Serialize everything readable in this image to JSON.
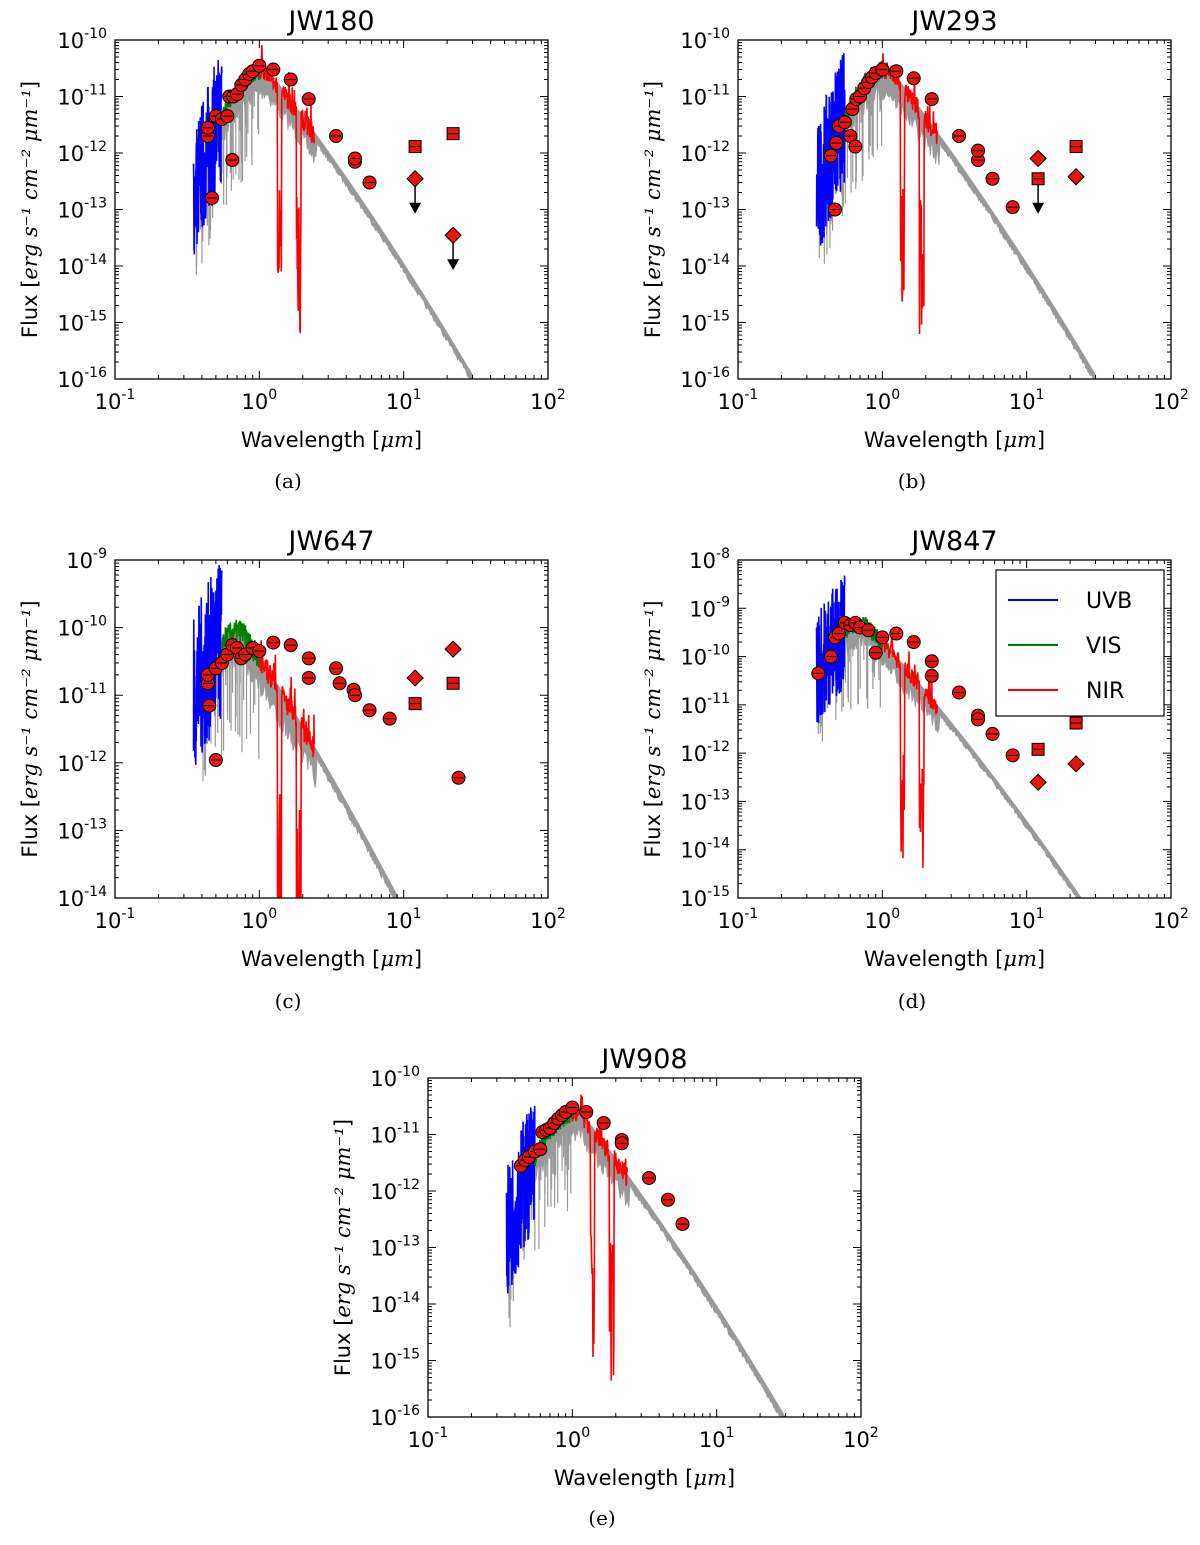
{
  "figure": {
    "type": "figure",
    "caption_note": ""
  },
  "axis_labels": {
    "x_prefix": "Wavelength [",
    "x_unit": "μm",
    "x_suffix": "]",
    "y_prefix": "Flux [",
    "y_unit": "erg s⁻¹ cm⁻² μm⁻¹",
    "y_suffix": "]"
  },
  "legend": {
    "entries": [
      {
        "label": "UVB",
        "color": "#0000ff"
      },
      {
        "label": "VIS",
        "color": "#008000"
      },
      {
        "label": "NIR",
        "color": "#ff0000"
      }
    ]
  },
  "colors": {
    "model": "#999999",
    "uvb": "#0000ff",
    "vis": "#008000",
    "nir": "#ff0000",
    "marker": "#e8140c"
  },
  "chart_data": [
    {
      "type": "scatter",
      "panel": "a",
      "title": "JW180",
      "caption": "(a)",
      "xscale": "log",
      "yscale": "log",
      "xlim": [
        0.1,
        100
      ],
      "ylim": [
        1e-16,
        1e-10
      ],
      "xticks": [
        0.1,
        1,
        10,
        100
      ],
      "xtick_labels": [
        "10-1",
        "100",
        "101",
        "102"
      ],
      "yticks_exp": [
        -16,
        -15,
        -14,
        -13,
        -12,
        -11,
        -10
      ],
      "model_peak": {
        "x": 1.1,
        "y": 3e-11
      },
      "model_xrange": [
        0.35,
        30
      ],
      "spectra": {
        "uvb": [
          0.35,
          0.55
        ],
        "vis": [
          0.55,
          1.0
        ],
        "nir": [
          1.0,
          2.4
        ]
      },
      "photometry_circles": [
        [
          0.44,
          2e-12
        ],
        [
          0.44,
          2.8e-12
        ],
        [
          0.47,
          1.6e-13
        ],
        [
          0.5,
          4.5e-12
        ],
        [
          0.55,
          4e-12
        ],
        [
          0.6,
          4.5e-12
        ],
        [
          0.62,
          1e-11
        ],
        [
          0.65,
          7.5e-13
        ],
        [
          0.66,
          1e-11
        ],
        [
          0.7,
          1.1e-11
        ],
        [
          0.75,
          1.6e-11
        ],
        [
          0.8,
          2e-11
        ],
        [
          0.85,
          2.5e-11
        ],
        [
          0.9,
          2.8e-11
        ],
        [
          1.0,
          3.5e-11
        ],
        [
          1.25,
          3e-11
        ],
        [
          1.65,
          2e-11
        ],
        [
          2.2,
          9e-12
        ],
        [
          3.4,
          2e-12
        ],
        [
          4.6,
          7e-13
        ],
        [
          4.6,
          8e-13
        ],
        [
          5.8,
          3e-13
        ]
      ],
      "photometry_squares": [
        [
          12,
          1.3e-12
        ],
        [
          22,
          2.2e-12
        ]
      ],
      "photometry_diamonds": [
        [
          12,
          3.5e-13
        ],
        [
          22,
          3.5e-14
        ]
      ],
      "upper_limits": [
        [
          12,
          3.5e-13
        ],
        [
          22,
          3.5e-14
        ]
      ]
    },
    {
      "type": "scatter",
      "panel": "b",
      "title": "JW293",
      "caption": "(b)",
      "xscale": "log",
      "yscale": "log",
      "xlim": [
        0.1,
        100
      ],
      "ylim": [
        1e-16,
        1e-10
      ],
      "xticks": [
        0.1,
        1,
        10,
        100
      ],
      "xtick_labels": [
        "10-1",
        "100",
        "101",
        "102"
      ],
      "yticks_exp": [
        -16,
        -15,
        -14,
        -13,
        -12,
        -11,
        -10
      ],
      "model_peak": {
        "x": 1.1,
        "y": 3e-11
      },
      "model_xrange": [
        0.35,
        30
      ],
      "spectra": {
        "uvb": [
          0.35,
          0.55
        ],
        "vis": [
          0.55,
          1.0
        ],
        "nir": [
          1.0,
          2.4
        ]
      },
      "photometry_circles": [
        [
          0.44,
          9e-13
        ],
        [
          0.47,
          1e-13
        ],
        [
          0.48,
          1.5e-12
        ],
        [
          0.5,
          3e-12
        ],
        [
          0.55,
          3.5e-12
        ],
        [
          0.6,
          2e-12
        ],
        [
          0.62,
          6e-12
        ],
        [
          0.65,
          1.3e-12
        ],
        [
          0.66,
          9e-12
        ],
        [
          0.7,
          1e-11
        ],
        [
          0.75,
          1.4e-11
        ],
        [
          0.8,
          1.8e-11
        ],
        [
          0.85,
          2.2e-11
        ],
        [
          0.9,
          2.6e-11
        ],
        [
          1.0,
          3e-11
        ],
        [
          1.25,
          2.8e-11
        ],
        [
          1.65,
          2.1e-11
        ],
        [
          2.2,
          9e-12
        ],
        [
          3.4,
          2e-12
        ],
        [
          4.6,
          7.5e-13
        ],
        [
          4.6,
          1.1e-12
        ],
        [
          5.8,
          3.5e-13
        ],
        [
          8,
          1.1e-13
        ]
      ],
      "photometry_squares": [
        [
          12,
          3.5e-13
        ],
        [
          22,
          1.3e-12
        ]
      ],
      "photometry_diamonds": [
        [
          12,
          8e-13
        ],
        [
          22,
          3.8e-13
        ]
      ],
      "upper_limits": [
        [
          12,
          3.5e-13
        ]
      ]
    },
    {
      "type": "scatter",
      "panel": "c",
      "title": "JW647",
      "caption": "(c)",
      "xscale": "log",
      "yscale": "log",
      "xlim": [
        0.1,
        100
      ],
      "ylim": [
        1e-14,
        1e-09
      ],
      "xticks": [
        0.1,
        1,
        10,
        100
      ],
      "xtick_labels": [
        "10-1",
        "100",
        "101",
        "102"
      ],
      "yticks_exp": [
        -14,
        -13,
        -12,
        -11,
        -10,
        -9
      ],
      "model_peak": {
        "x": 0.75,
        "y": 9e-11
      },
      "model_xrange": [
        0.35,
        16
      ],
      "spectra": {
        "uvb": [
          0.35,
          0.55
        ],
        "vis": [
          0.55,
          1.0
        ],
        "nir": [
          1.0,
          2.4
        ]
      },
      "photometry_circles": [
        [
          0.44,
          1.5e-11
        ],
        [
          0.44,
          2e-11
        ],
        [
          0.45,
          7e-12
        ],
        [
          0.5,
          1.1e-12
        ],
        [
          0.5,
          2.5e-11
        ],
        [
          0.55,
          3e-11
        ],
        [
          0.6,
          4e-11
        ],
        [
          0.65,
          5.5e-11
        ],
        [
          0.7,
          5e-11
        ],
        [
          0.75,
          3.5e-11
        ],
        [
          0.8,
          4e-11
        ],
        [
          0.9,
          5e-11
        ],
        [
          1.0,
          4.5e-11
        ],
        [
          1.25,
          6e-11
        ],
        [
          1.65,
          5.5e-11
        ],
        [
          2.2,
          3.5e-11
        ],
        [
          2.2,
          1.8e-11
        ],
        [
          3.4,
          2.5e-11
        ],
        [
          3.6,
          1.5e-11
        ],
        [
          4.5,
          1.2e-11
        ],
        [
          4.6,
          1e-11
        ],
        [
          5.8,
          6e-12
        ],
        [
          8,
          4.5e-12
        ],
        [
          24,
          6e-13
        ]
      ],
      "photometry_squares": [
        [
          12,
          7.5e-12
        ],
        [
          22,
          1.5e-11
        ]
      ],
      "photometry_diamonds": [
        [
          12,
          1.8e-11
        ],
        [
          22,
          4.8e-11
        ]
      ],
      "upper_limits": []
    },
    {
      "type": "scatter",
      "panel": "d",
      "title": "JW847",
      "caption": "(d)",
      "xscale": "log",
      "yscale": "log",
      "xlim": [
        0.1,
        100
      ],
      "ylim": [
        1e-15,
        1e-08
      ],
      "xticks": [
        0.1,
        1,
        10,
        100
      ],
      "xtick_labels": [
        "10-1",
        "100",
        "101",
        "102"
      ],
      "yticks_exp": [
        -15,
        -14,
        -13,
        -12,
        -11,
        -10,
        -9,
        -8
      ],
      "model_peak": {
        "x": 0.75,
        "y": 5e-10
      },
      "model_xrange": [
        0.35,
        30
      ],
      "spectra": {
        "uvb": [
          0.35,
          0.55
        ],
        "vis": [
          0.55,
          1.0
        ],
        "nir": [
          1.0,
          2.4
        ]
      },
      "photometry_circles": [
        [
          0.36,
          4.5e-11
        ],
        [
          0.44,
          1e-10
        ],
        [
          0.47,
          2.5e-10
        ],
        [
          0.5,
          3e-10
        ],
        [
          0.55,
          5e-10
        ],
        [
          0.6,
          4.5e-10
        ],
        [
          0.65,
          5e-10
        ],
        [
          0.7,
          4e-10
        ],
        [
          0.8,
          3.5e-10
        ],
        [
          0.9,
          1.2e-10
        ],
        [
          1.0,
          2.5e-10
        ],
        [
          1.25,
          3e-10
        ],
        [
          1.65,
          2e-10
        ],
        [
          2.2,
          8e-11
        ],
        [
          2.2,
          4e-11
        ],
        [
          3.4,
          1.8e-11
        ],
        [
          4.6,
          6e-12
        ],
        [
          4.6,
          5e-12
        ],
        [
          5.8,
          2.5e-12
        ],
        [
          8,
          9e-13
        ]
      ],
      "photometry_squares": [
        [
          12,
          1.2e-12
        ],
        [
          22,
          4.2e-12
        ]
      ],
      "photometry_diamonds": [
        [
          12,
          2.5e-13
        ],
        [
          22,
          6e-13
        ]
      ],
      "upper_limits": []
    },
    {
      "type": "scatter",
      "panel": "e",
      "title": "JW908",
      "caption": "(e)",
      "xscale": "log",
      "yscale": "log",
      "xlim": [
        0.1,
        100
      ],
      "ylim": [
        1e-16,
        1e-10
      ],
      "xticks": [
        0.1,
        1,
        10,
        100
      ],
      "xtick_labels": [
        "10-1",
        "100",
        "101",
        "102"
      ],
      "yticks_exp": [
        -16,
        -15,
        -14,
        -13,
        -12,
        -11,
        -10
      ],
      "model_peak": {
        "x": 1.1,
        "y": 2.5e-11
      },
      "model_xrange": [
        0.35,
        30
      ],
      "spectra": {
        "uvb": [
          0.35,
          0.55
        ],
        "vis": [
          0.55,
          1.0
        ],
        "nir": [
          1.0,
          2.4
        ]
      },
      "photometry_circles": [
        [
          0.44,
          2.8e-12
        ],
        [
          0.47,
          3.5e-12
        ],
        [
          0.5,
          4e-12
        ],
        [
          0.55,
          5e-12
        ],
        [
          0.6,
          5.5e-12
        ],
        [
          0.62,
          1.1e-11
        ],
        [
          0.66,
          1.2e-11
        ],
        [
          0.7,
          1.3e-11
        ],
        [
          0.75,
          1.6e-11
        ],
        [
          0.8,
          1.9e-11
        ],
        [
          0.85,
          2.2e-11
        ],
        [
          0.9,
          2.5e-11
        ],
        [
          1.0,
          3e-11
        ],
        [
          1.25,
          2.5e-11
        ],
        [
          1.65,
          1.6e-11
        ],
        [
          2.2,
          8e-12
        ],
        [
          2.2,
          7e-12
        ],
        [
          3.4,
          1.7e-12
        ],
        [
          4.6,
          7e-13
        ],
        [
          5.8,
          2.6e-13
        ]
      ],
      "photometry_squares": [],
      "photometry_diamonds": [],
      "upper_limits": []
    }
  ]
}
